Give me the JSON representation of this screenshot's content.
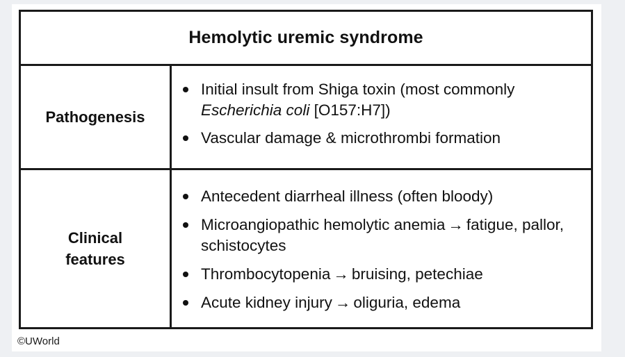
{
  "title": "Hemolytic uremic syndrome",
  "rows": {
    "pathogenesis": {
      "label": "Pathogenesis",
      "bullets": {
        "b1_text": "Initial insult from Shiga toxin (most commonly",
        "b1_italic": "Escherichia coli",
        "b1_suffix": " [O157:H7])",
        "b2": "Vascular damage & microthrombi formation"
      }
    },
    "clinical": {
      "label_line1": "Clinical",
      "label_line2": "features",
      "bullets": {
        "b1": "Antecedent diarrheal illness (often bloody)",
        "b2_pre": "Microangiopathic hemolytic anemia",
        "b2_post": "fatigue, pallor, schistocytes",
        "b3_pre": "Thrombocytopenia",
        "b3_post": "bruising, petechiae",
        "b4_pre": "Acute kidney injury",
        "b4_post": "oliguria, edema"
      }
    }
  },
  "arrow_glyph": "→",
  "copyright": "©UWorld"
}
